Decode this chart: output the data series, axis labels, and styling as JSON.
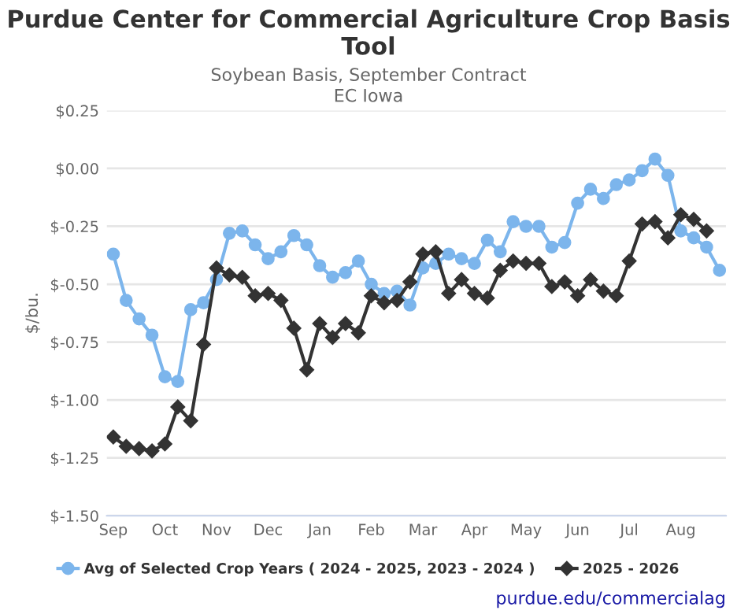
{
  "chart_data": {
    "type": "line",
    "title": "Purdue Center for Commercial Agriculture Crop Basis Tool",
    "subtitle": "Soybean Basis, September Contract\nEC Iowa",
    "ylabel": "$/bu.",
    "categories": [
      "Sep",
      null,
      null,
      null,
      "Oct",
      null,
      null,
      null,
      "Nov",
      null,
      null,
      null,
      "Dec",
      null,
      null,
      null,
      "Jan",
      null,
      null,
      null,
      "Feb",
      null,
      null,
      null,
      "Mar",
      null,
      null,
      null,
      "Apr",
      null,
      null,
      null,
      "May",
      null,
      null,
      null,
      "Jun",
      null,
      null,
      null,
      "Jul",
      null,
      null,
      null,
      "Aug",
      null,
      null,
      null
    ],
    "ylim": [
      -1.5,
      0.25
    ],
    "yticks": [
      {
        "value": 0.25,
        "label": "$0.25"
      },
      {
        "value": 0,
        "label": "$0.00"
      },
      {
        "value": -0.25,
        "label": "$-0.25"
      },
      {
        "value": -0.5,
        "label": "$-0.50"
      },
      {
        "value": -0.75,
        "label": "$-0.75"
      },
      {
        "value": -1,
        "label": "$-1.00"
      },
      {
        "value": -1.25,
        "label": "$-1.25"
      },
      {
        "value": -1.5,
        "label": "$-1.50"
      }
    ],
    "grid": "y",
    "legend": "bottom",
    "annotations": [
      "purdue.edu/commercialag"
    ],
    "series": [
      {
        "name": "Avg of Selected Crop Years ( 2024 - 2025, 2023 - 2024 )",
        "color": "#7cb5ec",
        "marker": "circle",
        "values": [
          -0.37,
          -0.57,
          -0.65,
          -0.72,
          -0.9,
          -0.92,
          -0.61,
          -0.58,
          -0.48,
          -0.28,
          -0.27,
          -0.33,
          -0.39,
          -0.36,
          -0.29,
          -0.33,
          -0.42,
          -0.47,
          -0.45,
          -0.4,
          -0.5,
          -0.54,
          -0.53,
          -0.59,
          -0.43,
          -0.41,
          -0.37,
          -0.39,
          -0.41,
          -0.31,
          -0.36,
          -0.23,
          -0.25,
          -0.25,
          -0.34,
          -0.32,
          -0.15,
          -0.09,
          -0.13,
          -0.07,
          -0.05,
          -0.01,
          0.04,
          -0.03,
          -0.27,
          -0.3,
          -0.34,
          -0.44
        ]
      },
      {
        "name": "2025 - 2026",
        "color": "#333333",
        "marker": "diamond",
        "values": [
          -1.16,
          -1.2,
          -1.21,
          -1.22,
          -1.19,
          -1.03,
          -1.09,
          -0.76,
          -0.43,
          -0.46,
          -0.47,
          -0.55,
          -0.54,
          -0.57,
          -0.69,
          -0.87,
          -0.67,
          -0.73,
          -0.67,
          -0.71,
          -0.55,
          -0.58,
          -0.57,
          -0.49,
          -0.37,
          -0.36,
          -0.54,
          -0.48,
          -0.54,
          -0.56,
          -0.44,
          -0.4,
          -0.41,
          -0.41,
          -0.51,
          -0.49,
          -0.55,
          -0.48,
          -0.53,
          -0.55,
          -0.4,
          -0.24,
          -0.23,
          -0.3,
          -0.2,
          -0.22,
          -0.27,
          null
        ]
      }
    ]
  }
}
